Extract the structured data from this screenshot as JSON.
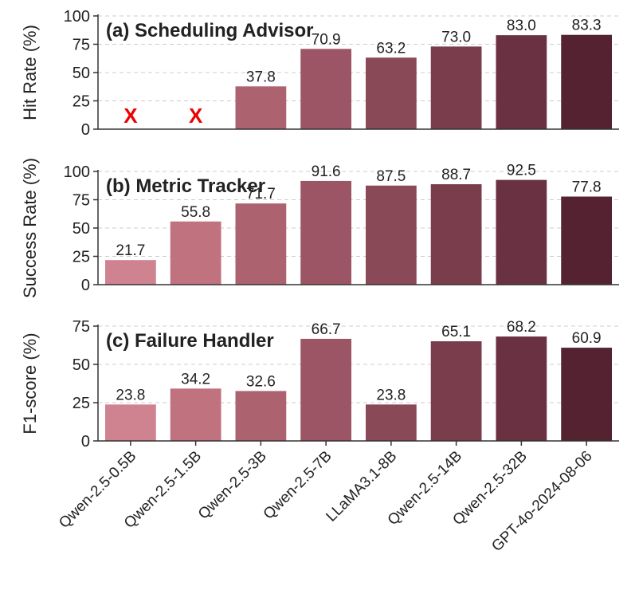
{
  "chart_data": {
    "type": "bar",
    "categories": [
      "Qwen-2.5-0.5B",
      "Qwen-2.5-1.5B",
      "Qwen-2.5-3B",
      "Qwen-2.5-7B",
      "LLaMA3.1-8B",
      "Qwen-2.5-14B",
      "Qwen-2.5-32B",
      "GPT-4o-2024-08-06"
    ],
    "bar_colors": [
      "#cf8290",
      "#c0737f",
      "#ad6270",
      "#9c5564",
      "#8a4957",
      "#7a3d4c",
      "#6a3142",
      "#552232"
    ],
    "missing_marker": "X",
    "missing_color": "#ee0000",
    "panels": [
      {
        "title": "(a) Scheduling Advisor",
        "ylabel": "Hit Rate (%)",
        "ylim": [
          0,
          100
        ],
        "yticks": [
          0,
          25,
          50,
          75,
          100
        ],
        "values": [
          null,
          null,
          37.8,
          70.9,
          63.2,
          73.0,
          83.0,
          83.3
        ],
        "labels": [
          "",
          "",
          "37.8",
          "70.9",
          "63.2",
          "73.0",
          "83.0",
          "83.3"
        ]
      },
      {
        "title": "(b) Metric Tracker",
        "ylabel": "Success Rate (%)",
        "ylim": [
          0,
          100
        ],
        "yticks": [
          0,
          25,
          50,
          75,
          100
        ],
        "values": [
          21.7,
          55.8,
          71.7,
          91.6,
          87.5,
          88.7,
          92.5,
          77.8
        ],
        "labels": [
          "21.7",
          "55.8",
          "71.7",
          "91.6",
          "87.5",
          "88.7",
          "92.5",
          "77.8"
        ]
      },
      {
        "title": "(c) Failure Handler",
        "ylabel": "F1-score (%)",
        "ylim": [
          0,
          75
        ],
        "yticks": [
          0,
          25,
          50,
          75
        ],
        "values": [
          23.8,
          34.2,
          32.6,
          66.7,
          23.8,
          65.1,
          68.2,
          60.9
        ],
        "labels": [
          "23.8",
          "34.2",
          "32.6",
          "66.7",
          "23.8",
          "65.1",
          "68.2",
          "60.9"
        ]
      }
    ]
  }
}
